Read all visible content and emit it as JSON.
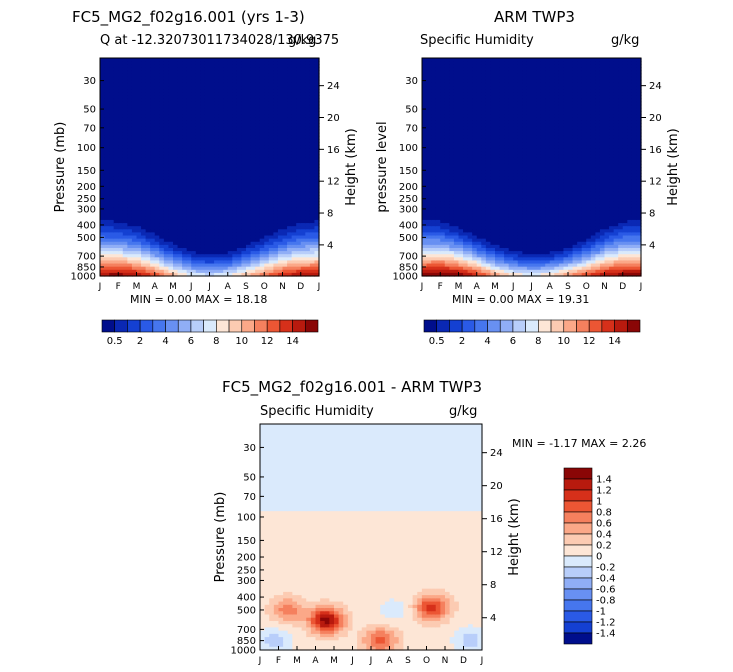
{
  "panels": [
    {
      "title": "FC5_MG2_f02g16.001 (yrs 1-3)",
      "subtitle_left": "Q at -12.32073011734028/130.9375",
      "subtitle_right": "g/kg",
      "ylabel_left": "Pressure (mb)",
      "ylabel_right": "Height (km)",
      "minmax": "MIN =    0.00 MAX =   18.18"
    },
    {
      "title": "ARM TWP3",
      "subtitle_left": "Specific Humidity",
      "subtitle_right": "g/kg",
      "ylabel_left": "pressure level",
      "ylabel_right": "Height (km)",
      "minmax": "MIN =    0.00 MAX =   19.31"
    },
    {
      "title": "FC5_MG2_f02g16.001 - ARM TWP3",
      "subtitle_left": "Specific Humidity",
      "subtitle_right": "g/kg",
      "ylabel_left": "Pressure (mb)",
      "ylabel_right": "Height (km)",
      "minmax": "MIN =   -1.17 MAX =    2.26"
    }
  ],
  "colorbar_top": {
    "colors": [
      "#000e8c",
      "#0a28b4",
      "#1440d2",
      "#2a5ae6",
      "#4676ee",
      "#6890f2",
      "#90aef6",
      "#b8cefa",
      "#daeafc",
      "#fde6d6",
      "#fccbb2",
      "#fba888",
      "#f5805e",
      "#ec5634",
      "#d6301a",
      "#b81a0e",
      "#8a0606"
    ],
    "labels": [
      "0.5",
      "2",
      "4",
      "6",
      "8",
      "10",
      "12",
      "14"
    ]
  },
  "colorbar_diff": {
    "colors": [
      "#8a0606",
      "#b81a0e",
      "#d6301a",
      "#ec5634",
      "#f5805e",
      "#fba888",
      "#fccbb2",
      "#fde6d6",
      "#daeafc",
      "#b8cefa",
      "#90aef6",
      "#6890f2",
      "#4676ee",
      "#2a5ae6",
      "#1440d2",
      "#000e8c"
    ],
    "labels": [
      "1.4",
      "1.2",
      "1",
      "0.8",
      "0.6",
      "0.4",
      "0.2",
      "0",
      "-0.2",
      "-0.4",
      "-0.6",
      "-0.8",
      "-1",
      "-1.2",
      "-1.4"
    ]
  },
  "chart_data": [
    {
      "type": "heatmap",
      "title": "FC5_MG2_f02g16.001 (yrs 1-3)",
      "subtitle": "Q at -12.32073011734028/130.9375",
      "units": "g/kg",
      "x_ticks": [
        "J",
        "F",
        "M",
        "A",
        "M",
        "J",
        "J",
        "A",
        "S",
        "O",
        "N",
        "D",
        "J"
      ],
      "pressure_ticks": [
        30,
        50,
        70,
        100,
        150,
        200,
        250,
        300,
        400,
        500,
        700,
        850,
        1000
      ],
      "height_ticks_km": [
        4,
        8,
        12,
        16,
        20,
        24
      ],
      "yscale": "log",
      "ylim_mb": [
        1000,
        20
      ],
      "moist_layer_top_mb": [
        300,
        310,
        340,
        400,
        480,
        560,
        600,
        580,
        500,
        420,
        360,
        320,
        300
      ],
      "surface_q_gkg": [
        17,
        18,
        17,
        15,
        12,
        10,
        9,
        10,
        12,
        14,
        16,
        17,
        17
      ],
      "min": 0.0,
      "max": 18.18
    },
    {
      "type": "heatmap",
      "title": "ARM TWP3",
      "subtitle": "Specific Humidity",
      "units": "g/kg",
      "x_ticks": [
        "J",
        "F",
        "M",
        "A",
        "M",
        "J",
        "J",
        "A",
        "S",
        "O",
        "N",
        "D",
        "J"
      ],
      "pressure_ticks": [
        30,
        50,
        70,
        100,
        150,
        200,
        250,
        300,
        400,
        500,
        700,
        850,
        1000
      ],
      "height_ticks_km": [
        4,
        8,
        12,
        16,
        20,
        24
      ],
      "yscale": "log",
      "ylim_mb": [
        1000,
        20
      ],
      "moist_layer_top_mb": [
        300,
        310,
        350,
        420,
        500,
        560,
        600,
        580,
        530,
        440,
        360,
        310,
        300
      ],
      "surface_q_gkg": [
        18,
        19,
        18,
        16,
        13,
        11,
        10,
        11,
        13,
        15,
        17,
        18,
        18
      ],
      "min": 0.0,
      "max": 19.31
    },
    {
      "type": "heatmap",
      "title": "FC5_MG2_f02g16.001 - ARM TWP3",
      "subtitle": "Specific Humidity",
      "units": "g/kg",
      "x_ticks": [
        "J",
        "F",
        "M",
        "A",
        "M",
        "J",
        "J",
        "A",
        "S",
        "O",
        "N",
        "D",
        "J"
      ],
      "pressure_ticks": [
        30,
        50,
        70,
        100,
        150,
        200,
        250,
        300,
        400,
        500,
        700,
        850,
        1000
      ],
      "height_ticks_km": [
        4,
        8,
        12,
        16,
        20,
        24
      ],
      "yscale": "log",
      "upper_band_lt_mb": 90,
      "upper_band_value": -0.1,
      "midlevel_value": 0.1,
      "features": [
        {
          "month": 3.6,
          "pressure_mb": 600,
          "value": 1.4
        },
        {
          "month": 9.3,
          "pressure_mb": 480,
          "value": 1.0
        },
        {
          "month": 6.5,
          "pressure_mb": 850,
          "value": 0.8
        },
        {
          "month": 1.5,
          "pressure_mb": 500,
          "value": 0.6
        },
        {
          "month": 0.8,
          "pressure_mb": 850,
          "value": -0.4
        },
        {
          "month": 11.4,
          "pressure_mb": 850,
          "value": -0.4
        },
        {
          "month": 7.3,
          "pressure_mb": 500,
          "value": -0.2
        }
      ],
      "min": -1.17,
      "max": 2.26
    }
  ]
}
